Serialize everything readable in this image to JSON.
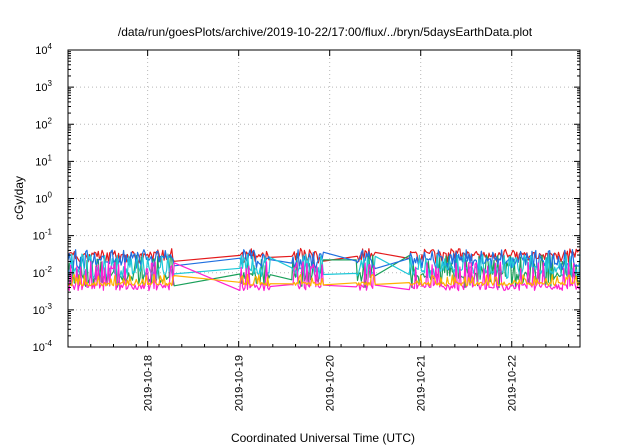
{
  "chart_data": {
    "type": "line",
    "title": "/data/run/goesPlots/archive/2019-10-22/17:00/flux/../bryn/5daysEarthData.plot",
    "xlabel": "Coordinated Universal Time (UTC)",
    "ylabel": "cGy/day",
    "yscale": "log",
    "ylim": [
      0.0001,
      10000
    ],
    "xlim": [
      "2019-10-17T03:00",
      "2019-10-22T18:00"
    ],
    "grid": true,
    "y_ticks": [
      {
        "base": "10",
        "exp": "-4",
        "value": 0.0001
      },
      {
        "base": "10",
        "exp": "-3",
        "value": 0.001
      },
      {
        "base": "10",
        "exp": "-2",
        "value": 0.01
      },
      {
        "base": "10",
        "exp": "-1",
        "value": 0.1
      },
      {
        "base": "10",
        "exp": "0",
        "value": 1
      },
      {
        "base": "10",
        "exp": "1",
        "value": 10
      },
      {
        "base": "10",
        "exp": "2",
        "value": 100
      },
      {
        "base": "10",
        "exp": "3",
        "value": 1000
      },
      {
        "base": "10",
        "exp": "4",
        "value": 10000
      }
    ],
    "x_ticks": [
      "2019-10-18",
      "2019-10-19",
      "2019-10-20",
      "2019-10-21",
      "2019-10-22"
    ],
    "series": [
      {
        "color": "#e41a1c",
        "base": 0.028,
        "noise": 0.01,
        "spikeBase": 0.03,
        "spikeMax": 0.045
      },
      {
        "color": "#1aa05a",
        "base": 0.0075,
        "noise": 0.0035,
        "spikeBase": 0.014,
        "spikeMax": 0.03
      },
      {
        "color": "#1f6fe0",
        "base": 0.02,
        "noise": 0.008,
        "spikeBase": 0.03,
        "spikeMax": 0.042
      },
      {
        "color": "#1fc8d8",
        "base": 0.011,
        "noise": 0.004,
        "spikeBase": 0.02,
        "spikeMax": 0.032
      },
      {
        "color": "#ff1fd2",
        "base": 0.0042,
        "noise": 0.0009,
        "spikeBase": 0.012,
        "spikeMax": 0.02
      },
      {
        "color": "#ffb000",
        "base": 0.005,
        "noise": 0.0006,
        "spikeBase": 0.006,
        "spikeMax": 0.009
      }
    ],
    "gaps": [
      [
        "2019-10-18T07:00",
        "2019-10-19T00:10"
      ],
      [
        "2019-10-19T08:30",
        "2019-10-19T14:00"
      ],
      [
        "2019-10-19T22:30",
        "2019-10-20T07:00"
      ],
      [
        "2019-10-20T12:00",
        "2019-10-20T21:00"
      ],
      [
        "2019-10-21T12:00",
        "2019-10-21T12:00"
      ]
    ]
  }
}
